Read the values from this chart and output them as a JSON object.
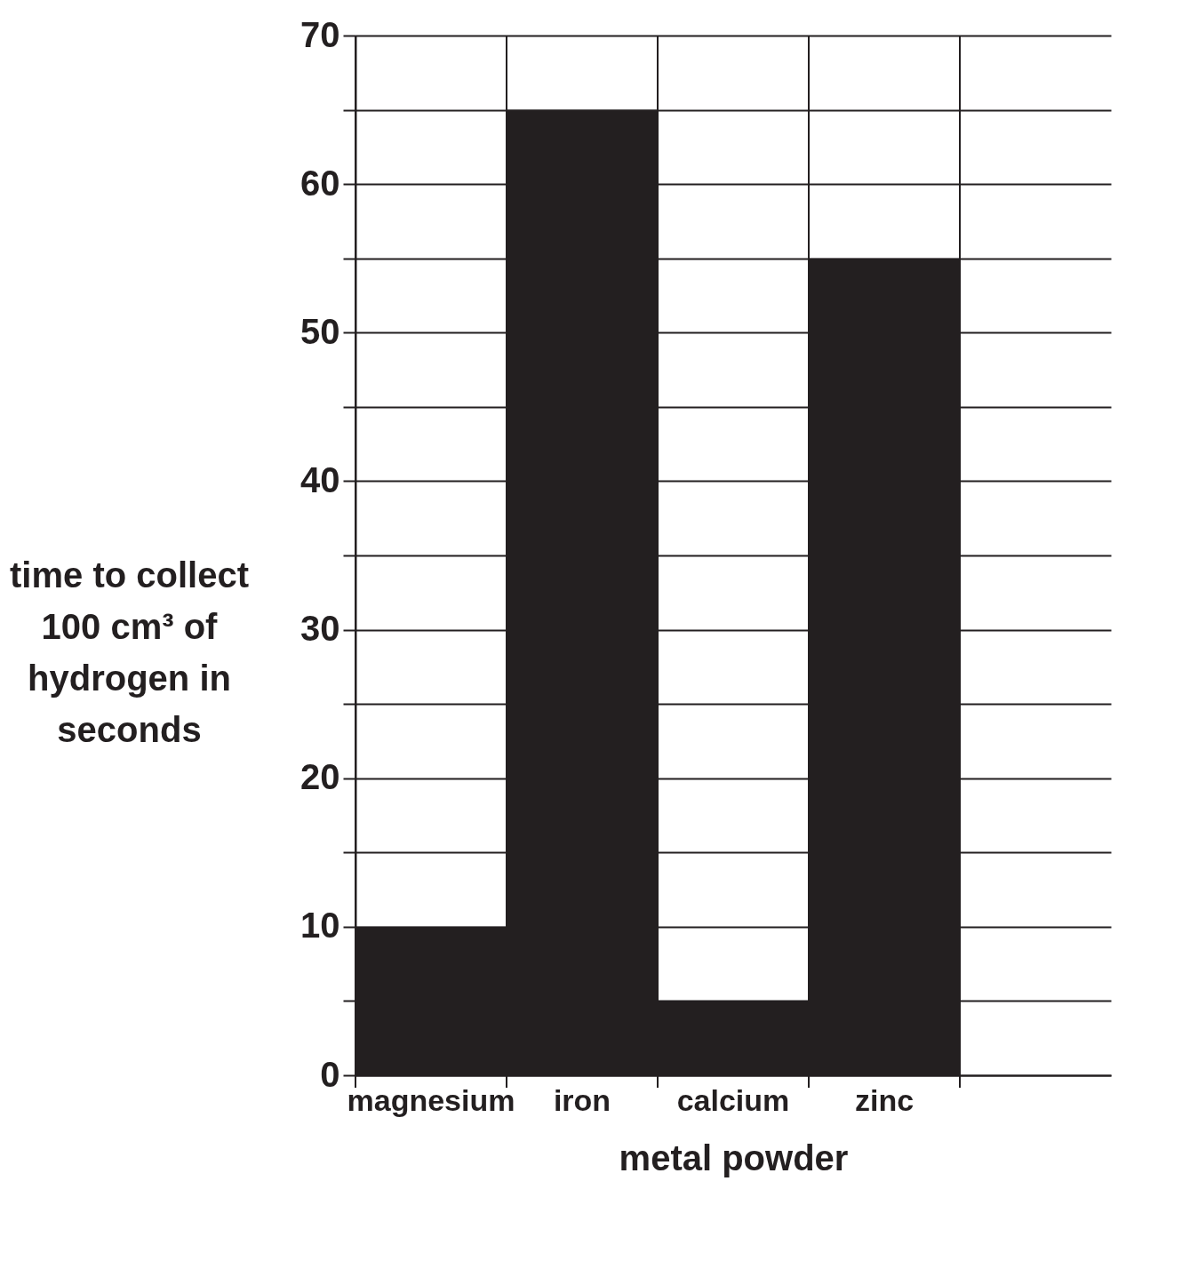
{
  "chart_data": {
    "type": "bar",
    "xlabel": "metal powder",
    "ylabel": "time to collect 100 cm³ of hydrogen in seconds",
    "categories": [
      "magnesium",
      "iron",
      "calcium",
      "zinc",
      null
    ],
    "values": [
      10,
      65,
      5,
      55,
      null
    ],
    "color": "#231f20",
    "ylim": [
      0,
      70
    ],
    "yticks": [
      0,
      {
        "value": 5,
        "label": null
      },
      10,
      {
        "value": 15,
        "label": null
      },
      20,
      {
        "value": 25,
        "label": null
      },
      30,
      {
        "value": 35,
        "label": null
      },
      40,
      {
        "value": 45,
        "label": null
      },
      50,
      {
        "value": 55,
        "label": null
      },
      60,
      {
        "value": 65,
        "label": null
      },
      70
    ],
    "grid": true
  }
}
